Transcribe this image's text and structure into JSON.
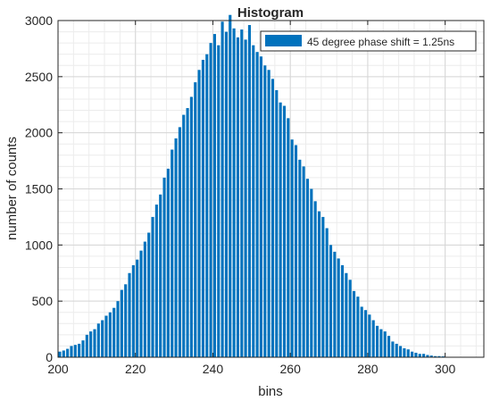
{
  "chart_data": {
    "type": "bar",
    "title": "Histogram",
    "xlabel": "bins",
    "ylabel": "number of counts",
    "xlim": [
      200,
      310
    ],
    "ylim": [
      0,
      3000
    ],
    "xticks": [
      200,
      220,
      240,
      260,
      280,
      300
    ],
    "yticks": [
      0,
      500,
      1000,
      1500,
      2000,
      2500,
      3000
    ],
    "grid": true,
    "legend_position": "top-right",
    "bar_color": "#0072BD",
    "series": [
      {
        "name": "45 degree phase shift = 1.25ns",
        "bin_start": 200,
        "bin_width": 1,
        "values": [
          50,
          60,
          75,
          100,
          110,
          120,
          150,
          200,
          230,
          250,
          300,
          330,
          370,
          400,
          440,
          500,
          600,
          650,
          750,
          820,
          870,
          950,
          1030,
          1110,
          1250,
          1360,
          1450,
          1600,
          1680,
          1850,
          1950,
          2050,
          2160,
          2220,
          2320,
          2450,
          2560,
          2650,
          2700,
          2800,
          2880,
          2780,
          2990,
          2900,
          3050,
          2930,
          2850,
          2920,
          2830,
          2960,
          2780,
          2720,
          2680,
          2600,
          2560,
          2480,
          2380,
          2270,
          2240,
          2130,
          1940,
          1890,
          1760,
          1700,
          1590,
          1500,
          1390,
          1300,
          1250,
          1150,
          1000,
          940,
          880,
          820,
          750,
          690,
          590,
          540,
          450,
          420,
          380,
          330,
          280,
          250,
          230,
          190,
          140,
          120,
          100,
          80,
          70,
          50,
          40,
          30,
          30,
          20,
          15,
          10,
          10,
          8
        ]
      }
    ]
  }
}
